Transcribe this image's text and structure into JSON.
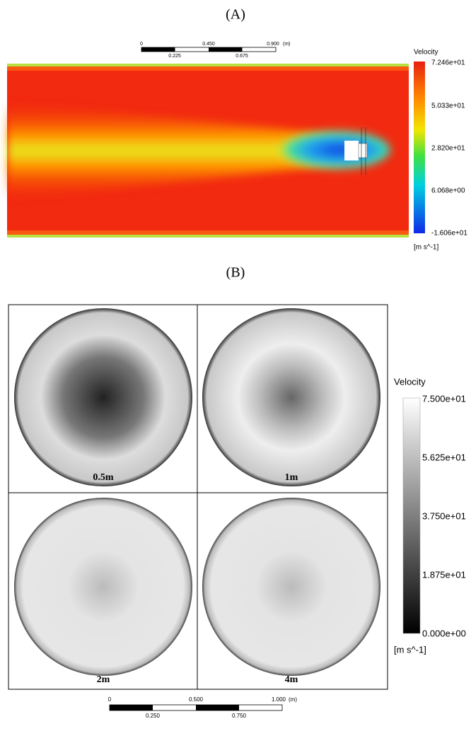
{
  "panel_a": {
    "label": "(A)",
    "scale_bar": {
      "top_labels": [
        "0",
        "0.450",
        "0.900"
      ],
      "unit": "(m)",
      "bottom_labels": [
        "0.225",
        "0.675"
      ]
    },
    "legend": {
      "title": "Velocity",
      "labels": [
        "7.246e+01",
        "5.033e+01",
        "2.820e+01",
        "6.068e+00",
        "-1.606e+01"
      ],
      "unit": "[m s^-1]"
    }
  },
  "panel_b": {
    "label": "(B)",
    "subplots": [
      "0.5m",
      "1m",
      "2m",
      "4m"
    ],
    "legend": {
      "title": "Velocity",
      "labels": [
        "7.500e+01",
        "5.625e+01",
        "3.750e+01",
        "1.875e+01",
        "0.000e+00"
      ],
      "unit": "[m s^-1]"
    },
    "scale_bar": {
      "top_labels": [
        "0",
        "0.500",
        "1.000"
      ],
      "unit": "(m)",
      "bottom_labels": [
        "0.250",
        "0.750"
      ]
    }
  }
}
